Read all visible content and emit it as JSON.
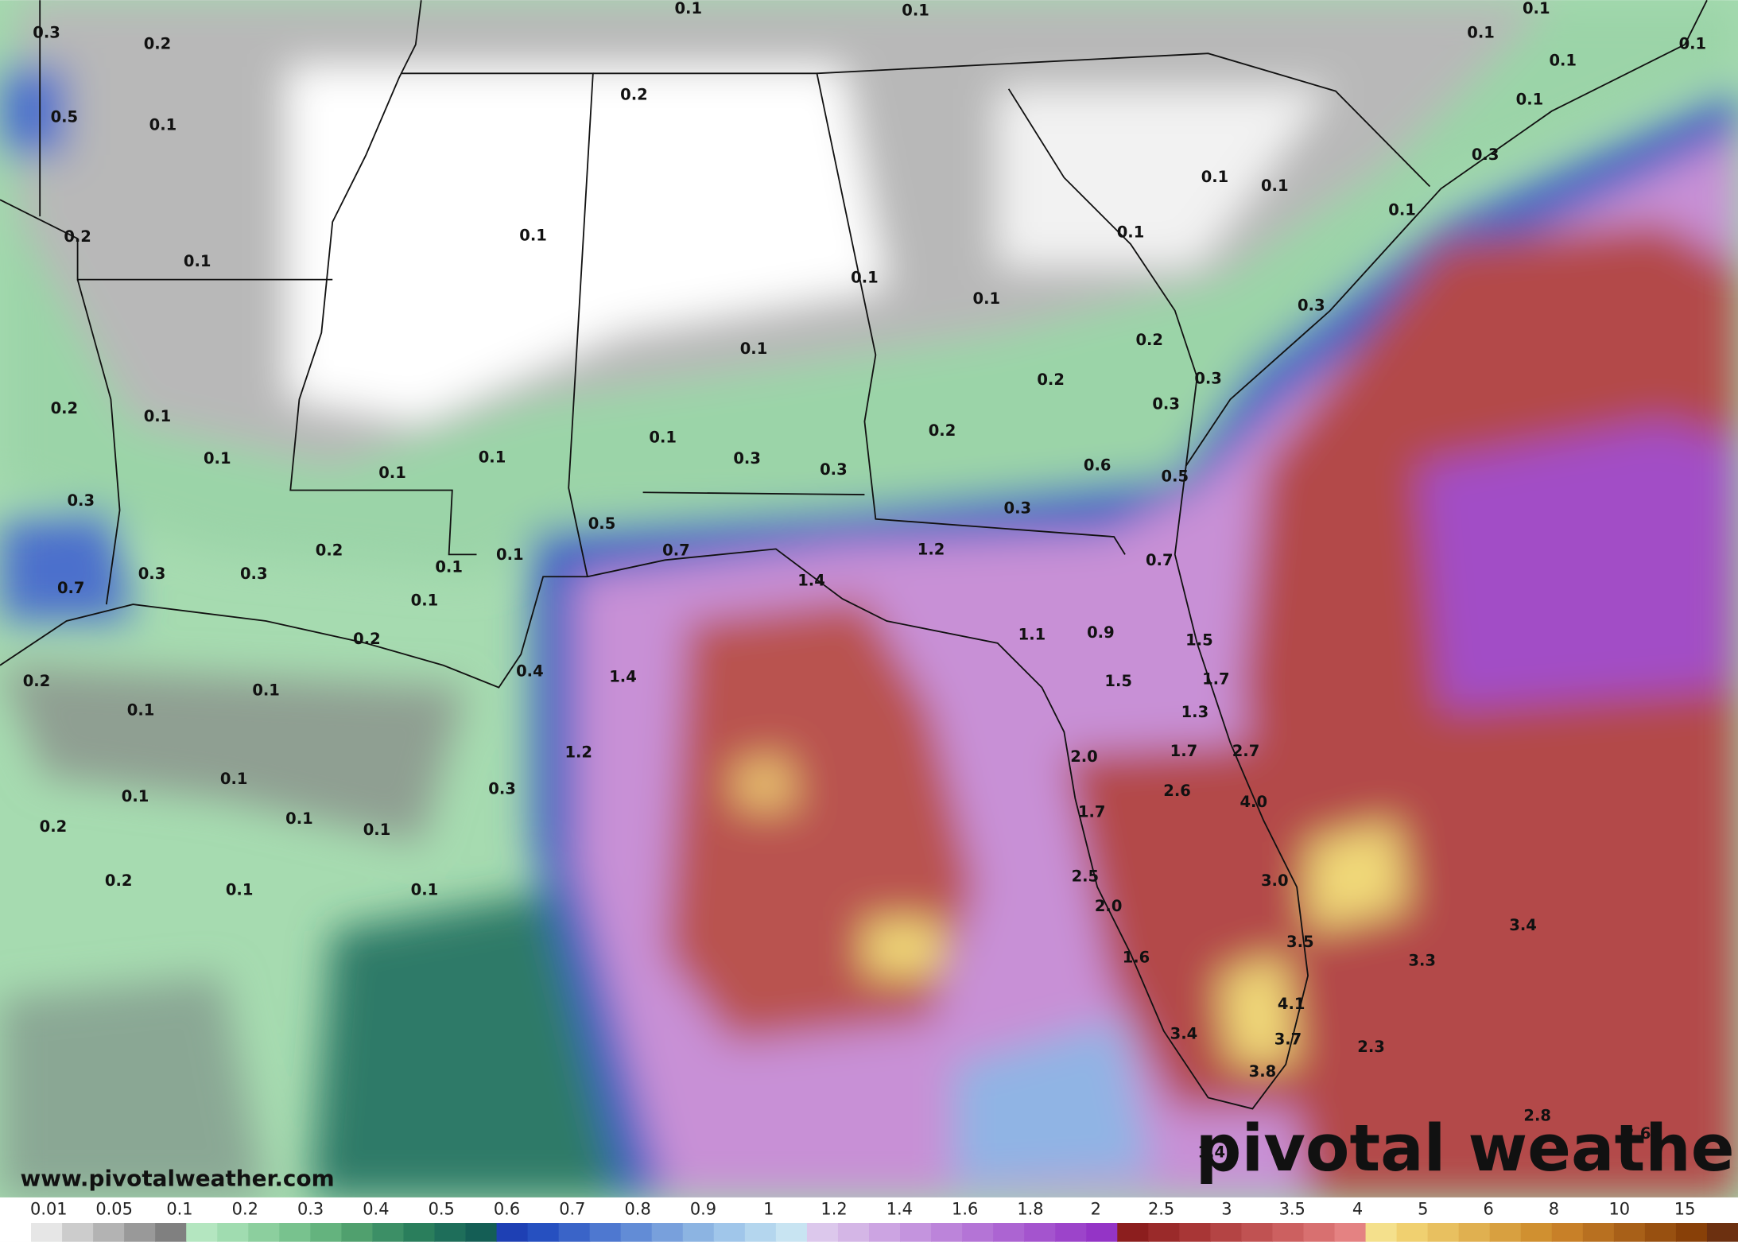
{
  "map": {
    "watermark": "www.pivotalweather.com",
    "logo": "pivotal weather",
    "labels": [
      "0.3",
      "0.2",
      "0.1",
      "0.1",
      "0.1",
      "0.1",
      "0.1",
      "0.1",
      "0.1",
      "0.5",
      "0.1",
      "0.2",
      "0.3",
      "0.1",
      "0.1",
      "0.1",
      "0.2",
      "0.1",
      "0.1",
      "0.1",
      "0.1",
      "0.1",
      "0.3",
      "0.2",
      "0.1",
      "0.2",
      "0.3",
      "0.3",
      "0.2",
      "0.1",
      "0.2",
      "0.1",
      "0.1",
      "0.1",
      "0.3",
      "0.3",
      "0.1",
      "0.6",
      "0.5",
      "0.3",
      "0.3",
      "0.5",
      "0.2",
      "0.1",
      "0.7",
      "1.2",
      "0.7",
      "0.1",
      "0.3",
      "0.3",
      "0.7",
      "1.4",
      "0.1",
      "0.2",
      "1.1",
      "0.9",
      "1.5",
      "0.4",
      "1.4",
      "0.2",
      "1.5",
      "1.7",
      "0.1",
      "0.1",
      "1.3",
      "1.2",
      "2.0",
      "1.7",
      "2.7",
      "0.1",
      "0.3",
      "2.6",
      "4.0",
      "0.1",
      "1.7",
      "0.1",
      "0.2",
      "0.1",
      "2.5",
      "3.0",
      "0.2",
      "0.1",
      "0.1",
      "2.0",
      "3.4",
      "3.5",
      "1.6",
      "3.3",
      "4.1",
      "3.4",
      "3.7",
      "2.3",
      "3.8",
      "2.8",
      "2.6",
      "1.4"
    ],
    "legend": {
      "ticks": [
        0.01,
        0.05,
        0.1,
        0.2,
        0.3,
        0.4,
        0.5,
        0.6,
        0.7,
        0.8,
        0.9,
        1,
        1.2,
        1.4,
        1.6,
        1.8,
        2,
        2.5,
        3,
        3.5,
        4,
        5,
        6,
        8,
        10,
        15
      ],
      "colors": [
        "#ffffff",
        "#e6e6e6",
        "#cccccc",
        "#b3b3b3",
        "#999999",
        "#808080",
        "#b4e6c0",
        "#a0dcb0",
        "#8ccf9e",
        "#78c28e",
        "#64b37e",
        "#50a06e",
        "#3c8f66",
        "#2a7e5c",
        "#1e6e5a",
        "#145e55",
        "#1e40b4",
        "#2650c0",
        "#3a64c8",
        "#4e78d0",
        "#628cd6",
        "#78a0dc",
        "#8cb4e2",
        "#a0c6ea",
        "#b4d6ee",
        "#c8e4f2",
        "#dcc8ec",
        "#d4b6e6",
        "#cca4e2",
        "#c494de",
        "#bc84da",
        "#b474d6",
        "#ac64d2",
        "#a454ce",
        "#9c44ca",
        "#9434c6",
        "#8c1e1e",
        "#9a2a2a",
        "#a83636",
        "#b44444",
        "#c05252",
        "#cc6060",
        "#d87070",
        "#e48282",
        "#f4e08c",
        "#f0d070",
        "#e8c060",
        "#e0b050",
        "#d8a040",
        "#d09030",
        "#c88028",
        "#b87020",
        "#a86018",
        "#985010",
        "#884008",
        "#6c3010"
      ]
    }
  }
}
